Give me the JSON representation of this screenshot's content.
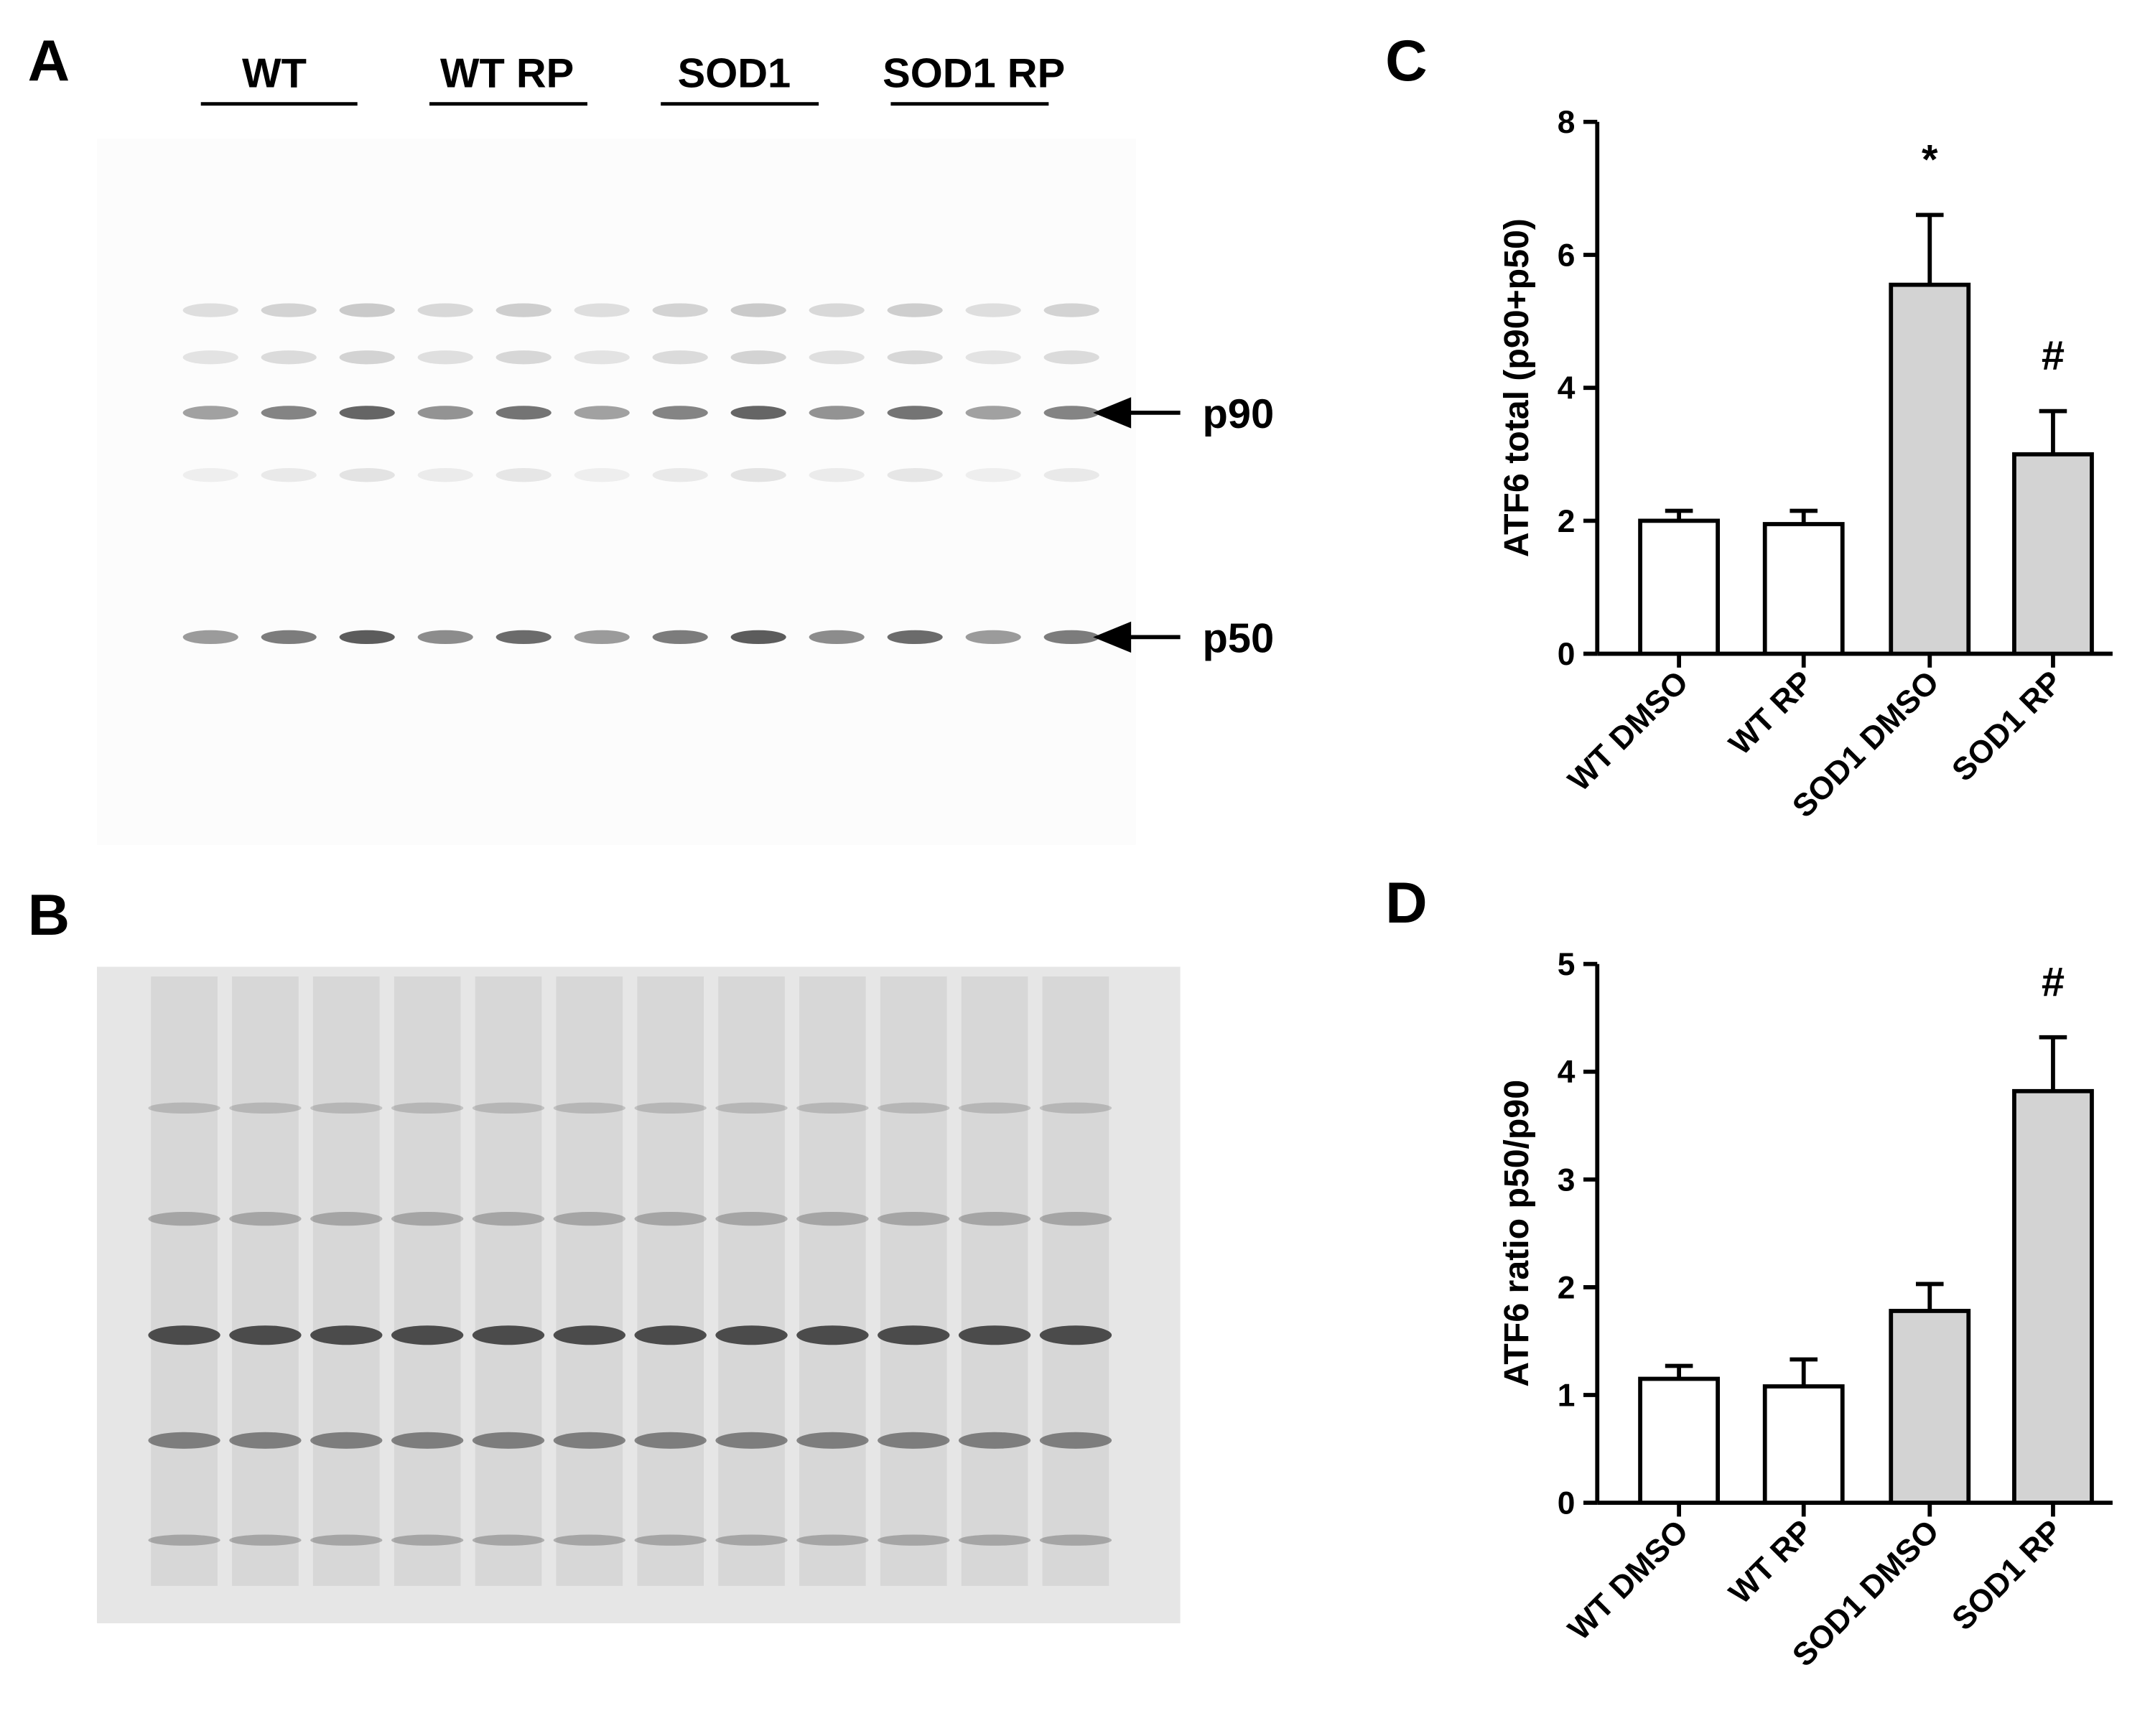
{
  "blots": {
    "panel_a": "A",
    "panel_b": "B",
    "groups": [
      "WT",
      "WT RP",
      "SOD1",
      "SOD1 RP"
    ],
    "bands": [
      "p90",
      "p50"
    ]
  },
  "chart_data": [
    {
      "type": "bar",
      "panel": "C",
      "ylabel": "ATF6 total (p90+p50)",
      "categories": [
        "WT DMSO",
        "WT RP",
        "SOD1 DMSO",
        "SOD1 RP"
      ],
      "values": [
        2.0,
        1.95,
        5.55,
        3.0
      ],
      "errors": [
        0.15,
        0.2,
        1.05,
        0.65
      ],
      "colors": [
        "#ffffff",
        "#ffffff",
        "#d3d3d3",
        "#d3d3d3"
      ],
      "annotations": [
        null,
        null,
        "*",
        "#"
      ],
      "ylim": [
        0,
        8
      ],
      "yticks": [
        0,
        2,
        4,
        6,
        8
      ]
    },
    {
      "type": "bar",
      "panel": "D",
      "ylabel": "ATF6 ratio p50/p90",
      "categories": [
        "WT DMSO",
        "WT RP",
        "SOD1 DMSO",
        "SOD1 RP"
      ],
      "values": [
        1.15,
        1.08,
        1.78,
        3.82
      ],
      "errors": [
        0.12,
        0.25,
        0.25,
        0.5
      ],
      "colors": [
        "#ffffff",
        "#ffffff",
        "#d3d3d3",
        "#d3d3d3"
      ],
      "annotations": [
        null,
        null,
        null,
        "#"
      ],
      "ylim": [
        0,
        5
      ],
      "yticks": [
        0,
        1,
        2,
        3,
        4,
        5
      ]
    }
  ]
}
